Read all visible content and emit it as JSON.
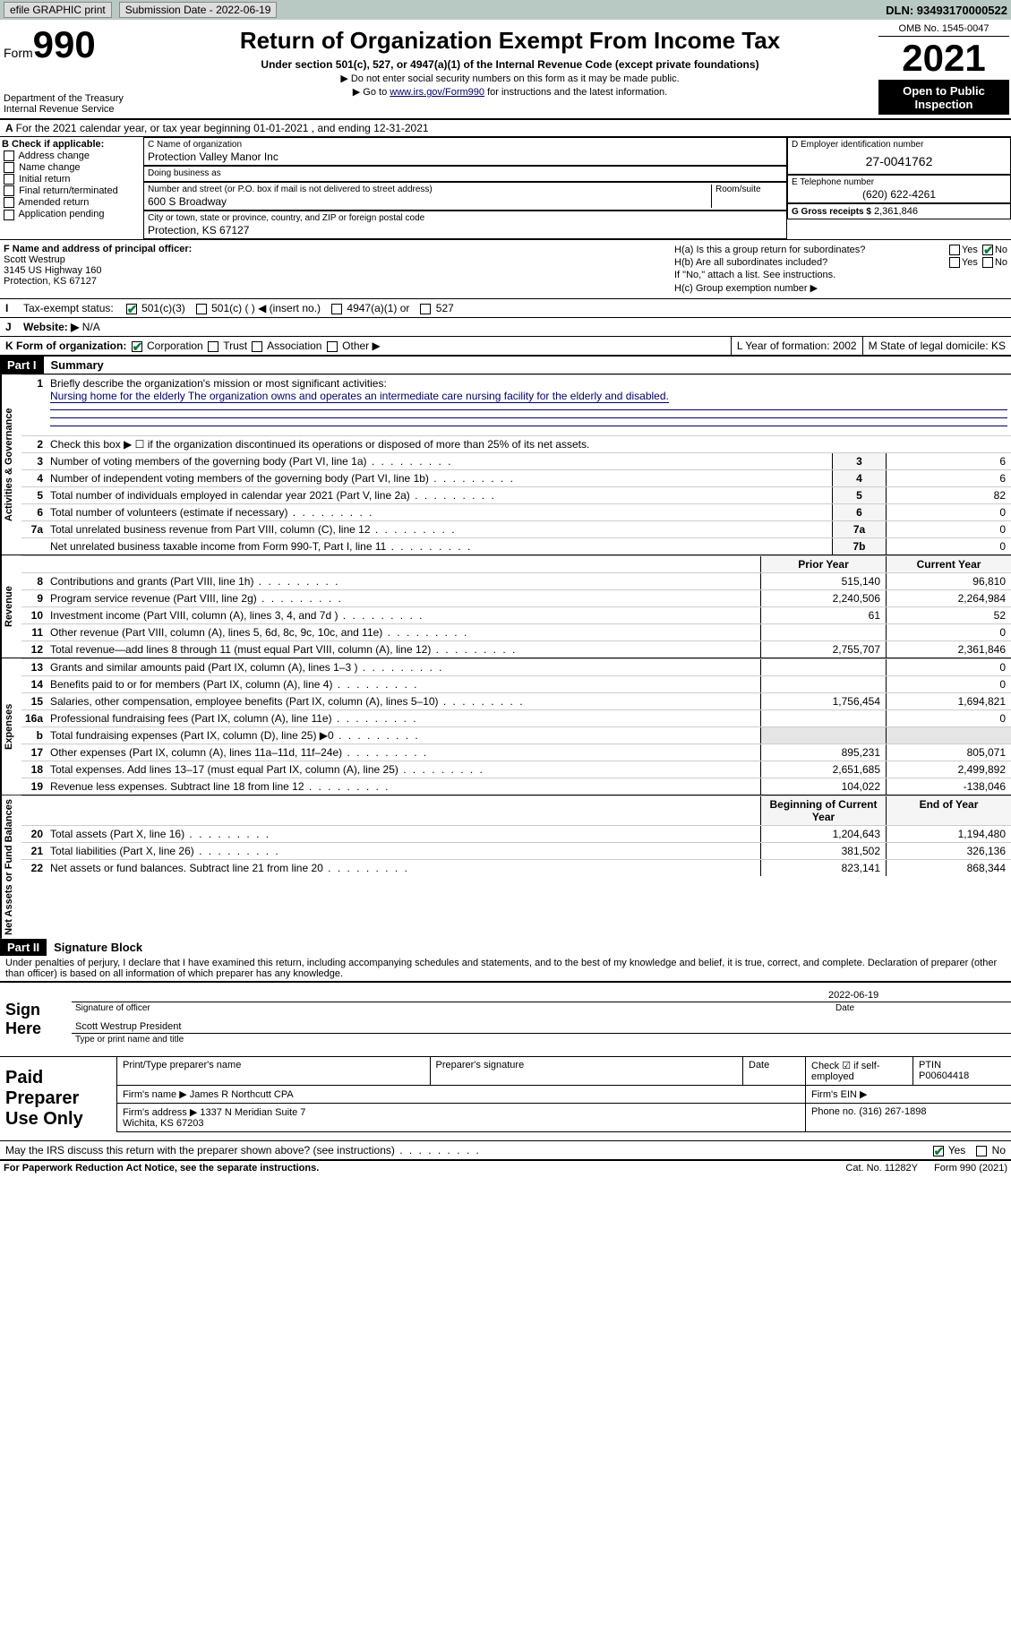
{
  "topbar": {
    "efile": "efile GRAPHIC print",
    "sub_lbl": "Submission Date - 2022-06-19",
    "dln": "DLN: 93493170000522"
  },
  "header": {
    "form": "Form",
    "num": "990",
    "dept": "Department of the Treasury\nInternal Revenue Service",
    "title": "Return of Organization Exempt From Income Tax",
    "sub": "Under section 501(c), 527, or 4947(a)(1) of the Internal Revenue Code (except private foundations)",
    "sub2a": "▶ Do not enter social security numbers on this form as it may be made public.",
    "sub2b_pre": "▶ Go to ",
    "sub2b_link": "www.irs.gov/Form990",
    "sub2b_post": " for instructions and the latest information.",
    "omb": "OMB No. 1545-0047",
    "year": "2021",
    "open": "Open to Public Inspection"
  },
  "A": {
    "txt": "For the 2021 calendar year, or tax year beginning 01-01-2021  , and ending 12-31-2021"
  },
  "B": {
    "lbl": "B Check if applicable:",
    "items": [
      "Address change",
      "Name change",
      "Initial return",
      "Final return/terminated",
      "Amended return",
      "Application pending"
    ]
  },
  "C": {
    "name_lbl": "C Name of organization",
    "name": "Protection Valley Manor Inc",
    "dba_lbl": "Doing business as",
    "dba": "",
    "addr_lbl": "Number and street (or P.O. box if mail is not delivered to street address)",
    "room_lbl": "Room/suite",
    "addr": "600 S Broadway",
    "city_lbl": "City or town, state or province, country, and ZIP or foreign postal code",
    "city": "Protection, KS  67127"
  },
  "D": {
    "lbl": "D Employer identification number",
    "val": "27-0041762"
  },
  "E": {
    "lbl": "E Telephone number",
    "val": "(620) 622-4261"
  },
  "G": {
    "lbl": "G Gross receipts $",
    "val": "2,361,846"
  },
  "F": {
    "lbl": "F  Name and address of principal officer:",
    "name": "Scott Westrup",
    "addr1": "3145 US Highway 160",
    "addr2": "Protection, KS  67127"
  },
  "H": {
    "a": "H(a)  Is this a group return for subordinates?",
    "b": "H(b)  Are all subordinates included?",
    "bnote": "If \"No,\" attach a list. See instructions.",
    "c": "H(c)  Group exemption number ▶"
  },
  "I": {
    "lbl": "Tax-exempt status:",
    "opts": [
      "501(c)(3)",
      "501(c) (  ) ◀ (insert no.)",
      "4947(a)(1) or",
      "527"
    ]
  },
  "J": {
    "lbl": "Website: ▶",
    "val": "N/A"
  },
  "K": {
    "lbl": "K Form of organization:",
    "opts": [
      "Corporation",
      "Trust",
      "Association",
      "Other ▶"
    ]
  },
  "L": {
    "lbl": "L Year of formation:",
    "val": "2002"
  },
  "M": {
    "lbl": "M State of legal domicile:",
    "val": "KS"
  },
  "part1": {
    "hdr": "Part I",
    "title": "Summary",
    "l1": "Briefly describe the organization's mission or most significant activities:",
    "l1v": "Nursing home for the elderly The organization owns and operates an intermediate care nursing facility for the elderly and disabled.",
    "l2": "Check this box ▶ ☐  if the organization discontinued its operations or disposed of more than 25% of its net assets.",
    "rows_gov": [
      {
        "n": "3",
        "t": "Number of voting members of the governing body (Part VI, line 1a)",
        "c": "3",
        "v": "6"
      },
      {
        "n": "4",
        "t": "Number of independent voting members of the governing body (Part VI, line 1b)",
        "c": "4",
        "v": "6"
      },
      {
        "n": "5",
        "t": "Total number of individuals employed in calendar year 2021 (Part V, line 2a)",
        "c": "5",
        "v": "82"
      },
      {
        "n": "6",
        "t": "Total number of volunteers (estimate if necessary)",
        "c": "6",
        "v": "0"
      },
      {
        "n": "7a",
        "t": "Total unrelated business revenue from Part VIII, column (C), line 12",
        "c": "7a",
        "v": "0"
      },
      {
        "n": "",
        "t": "Net unrelated business taxable income from Form 990-T, Part I, line 11",
        "c": "7b",
        "v": "0"
      }
    ],
    "py": "Prior Year",
    "cy": "Current Year",
    "rows_rev": [
      {
        "n": "8",
        "t": "Contributions and grants (Part VIII, line 1h)",
        "p": "515,140",
        "c": "96,810"
      },
      {
        "n": "9",
        "t": "Program service revenue (Part VIII, line 2g)",
        "p": "2,240,506",
        "c": "2,264,984"
      },
      {
        "n": "10",
        "t": "Investment income (Part VIII, column (A), lines 3, 4, and 7d )",
        "p": "61",
        "c": "52"
      },
      {
        "n": "11",
        "t": "Other revenue (Part VIII, column (A), lines 5, 6d, 8c, 9c, 10c, and 11e)",
        "p": "",
        "c": "0"
      },
      {
        "n": "12",
        "t": "Total revenue—add lines 8 through 11 (must equal Part VIII, column (A), line 12)",
        "p": "2,755,707",
        "c": "2,361,846"
      }
    ],
    "rows_exp": [
      {
        "n": "13",
        "t": "Grants and similar amounts paid (Part IX, column (A), lines 1–3 )",
        "p": "",
        "c": "0"
      },
      {
        "n": "14",
        "t": "Benefits paid to or for members (Part IX, column (A), line 4)",
        "p": "",
        "c": "0"
      },
      {
        "n": "15",
        "t": "Salaries, other compensation, employee benefits (Part IX, column (A), lines 5–10)",
        "p": "1,756,454",
        "c": "1,694,821"
      },
      {
        "n": "16a",
        "t": "Professional fundraising fees (Part IX, column (A), line 11e)",
        "p": "",
        "c": "0"
      },
      {
        "n": "b",
        "t": "Total fundraising expenses (Part IX, column (D), line 25) ▶0",
        "p": "",
        "c": "",
        "shade": true
      },
      {
        "n": "17",
        "t": "Other expenses (Part IX, column (A), lines 11a–11d, 11f–24e)",
        "p": "895,231",
        "c": "805,071"
      },
      {
        "n": "18",
        "t": "Total expenses. Add lines 13–17 (must equal Part IX, column (A), line 25)",
        "p": "2,651,685",
        "c": "2,499,892"
      },
      {
        "n": "19",
        "t": "Revenue less expenses. Subtract line 18 from line 12",
        "p": "104,022",
        "c": "-138,046"
      }
    ],
    "bcy": "Beginning of Current Year",
    "eoy": "End of Year",
    "rows_na": [
      {
        "n": "20",
        "t": "Total assets (Part X, line 16)",
        "p": "1,204,643",
        "c": "1,194,480"
      },
      {
        "n": "21",
        "t": "Total liabilities (Part X, line 26)",
        "p": "381,502",
        "c": "326,136"
      },
      {
        "n": "22",
        "t": "Net assets or fund balances. Subtract line 21 from line 20",
        "p": "823,141",
        "c": "868,344"
      }
    ],
    "tabs": {
      "gov": "Activities & Governance",
      "rev": "Revenue",
      "exp": "Expenses",
      "na": "Net Assets or Fund Balances"
    }
  },
  "part2": {
    "hdr": "Part II",
    "title": "Signature Block",
    "decl": "Under penalties of perjury, I declare that I have examined this return, including accompanying schedules and statements, and to the best of my knowledge and belief, it is true, correct, and complete. Declaration of preparer (other than officer) is based on all information of which preparer has any knowledge.",
    "sign_here": "Sign Here",
    "sig_off": "Signature of officer",
    "date": "Date",
    "date_v": "2022-06-19",
    "name_title": "Scott Westrup President",
    "name_title_lbl": "Type or print name and title",
    "paid": "Paid Preparer Use Only",
    "ppname_lbl": "Print/Type preparer's name",
    "ppsig_lbl": "Preparer's signature",
    "ppdate_lbl": "Date",
    "ppcheck": "Check ☑ if self-employed",
    "ptin_lbl": "PTIN",
    "ptin": "P00604418",
    "firm_lbl": "Firm's name  ▶",
    "firm": "James R Northcutt CPA",
    "ein_lbl": "Firm's EIN ▶",
    "faddr_lbl": "Firm's address ▶",
    "faddr": "1337 N Meridian Suite 7\nWichita, KS  67203",
    "phone_lbl": "Phone no.",
    "phone": "(316) 267-1898",
    "discuss": "May the IRS discuss this return with the preparer shown above? (see instructions)"
  },
  "footer": {
    "pra": "For Paperwork Reduction Act Notice, see the separate instructions.",
    "cat": "Cat. No. 11282Y",
    "form": "Form 990 (2021)"
  }
}
